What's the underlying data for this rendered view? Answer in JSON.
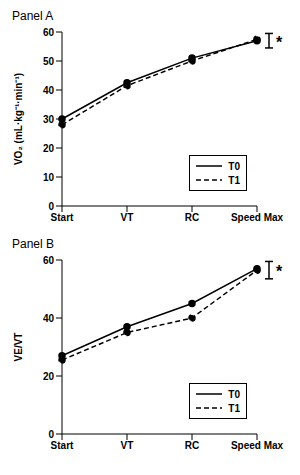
{
  "chart_data": [
    {
      "type": "line",
      "title": "Panel A",
      "ylabel": "VO₂ (mL·kg⁻¹·min⁻¹)",
      "categories": [
        "Start",
        "VT",
        "RC",
        "Speed Max"
      ],
      "series": [
        {
          "name": "T0",
          "color": "#000000",
          "line_style": "solid",
          "marker": "circle",
          "values": [
            30,
            42.5,
            51,
            57
          ]
        },
        {
          "name": "T1",
          "color": "#000000",
          "line_style": "dashed",
          "marker": "circle",
          "values": [
            28,
            41.5,
            50,
            57.5
          ]
        }
      ],
      "ylim": [
        0,
        60
      ],
      "yticks": [
        0,
        10,
        20,
        30,
        40,
        50,
        60
      ],
      "legend": "lower right",
      "annotations": [
        {
          "text": "*",
          "category": "Speed Max",
          "low": 54.5,
          "high": 59.5
        }
      ]
    },
    {
      "type": "line",
      "title": "Panel B",
      "ylabel": "VE/VT",
      "categories": [
        "Start",
        "VT",
        "RC",
        "Speed Max"
      ],
      "series": [
        {
          "name": "T0",
          "color": "#000000",
          "line_style": "solid",
          "marker": "circle",
          "values": [
            27,
            37,
            45,
            57
          ]
        },
        {
          "name": "T1",
          "color": "#000000",
          "line_style": "dashed",
          "marker": "circle",
          "values": [
            25.5,
            35,
            40,
            56.5
          ]
        }
      ],
      "ylim": [
        0,
        60
      ],
      "yticks": [
        0,
        20,
        40,
        60
      ],
      "legend": "lower right",
      "annotations": [
        {
          "text": "*",
          "category": "Speed Max",
          "low": 53.5,
          "high": 59.5
        }
      ]
    }
  ]
}
